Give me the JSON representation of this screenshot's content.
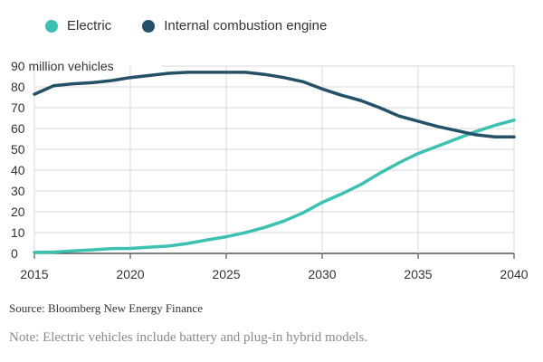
{
  "chart_data": {
    "type": "line",
    "ylabel": "90 million vehicles",
    "ylim": [
      0,
      90
    ],
    "yticks": [
      0,
      10,
      20,
      30,
      40,
      50,
      60,
      70,
      80
    ],
    "xlim": [
      2015,
      2040
    ],
    "xticks": [
      2015,
      2020,
      2025,
      2030,
      2035,
      2040
    ],
    "grid": true,
    "legend_position": "top-left",
    "series": [
      {
        "name": "Electric",
        "color": "#3cc1b0",
        "x": [
          2015,
          2016,
          2017,
          2018,
          2019,
          2020,
          2021,
          2022,
          2023,
          2024,
          2025,
          2026,
          2027,
          2028,
          2029,
          2030,
          2031,
          2032,
          2033,
          2034,
          2035,
          2036,
          2037,
          2038,
          2039,
          2040
        ],
        "values": [
          0.5,
          0.6,
          1.2,
          1.7,
          2.3,
          2.4,
          3.0,
          3.5,
          4.8,
          6.5,
          8.0,
          10.0,
          12.5,
          15.5,
          19.5,
          24.5,
          28.5,
          33.0,
          38.5,
          43.5,
          48.0,
          51.5,
          55.0,
          58.5,
          61.5,
          64.0
        ]
      },
      {
        "name": "Internal combustion engine",
        "color": "#245167",
        "x": [
          2015,
          2016,
          2017,
          2018,
          2019,
          2020,
          2021,
          2022,
          2023,
          2024,
          2025,
          2026,
          2027,
          2028,
          2029,
          2030,
          2031,
          2032,
          2033,
          2034,
          2035,
          2036,
          2037,
          2038,
          2039,
          2040
        ],
        "values": [
          76.5,
          80.5,
          81.5,
          82.0,
          83.0,
          84.5,
          85.5,
          86.5,
          87.0,
          87.0,
          87.0,
          87.0,
          86.0,
          84.5,
          82.5,
          79.0,
          76.0,
          73.5,
          70.0,
          66.0,
          63.5,
          61.0,
          59.0,
          57.0,
          56.0,
          56.0
        ]
      }
    ]
  },
  "footer": {
    "source": "Source: Bloomberg New Energy Finance",
    "note": "Note: Electric vehicles include battery and plug-in hybrid models."
  }
}
